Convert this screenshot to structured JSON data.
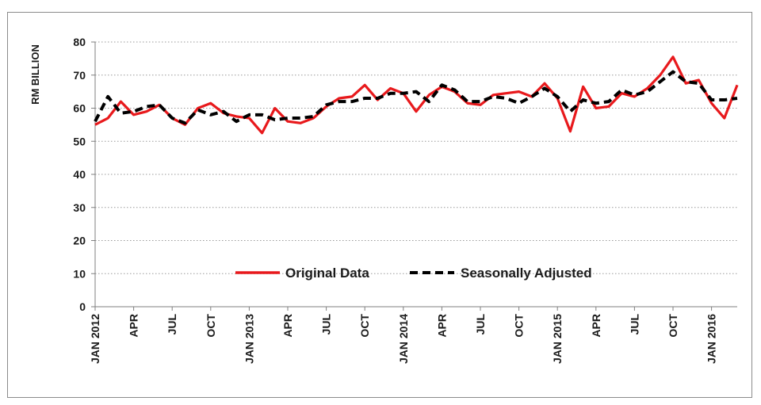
{
  "chart_data": {
    "type": "line",
    "title": "",
    "xlabel": "",
    "ylabel": "RM BILLION",
    "ylim": [
      0,
      80
    ],
    "y_ticks": [
      0,
      10,
      20,
      30,
      40,
      50,
      60,
      70,
      80
    ],
    "grid": "horizontal dotted",
    "legend_position": "bottom-center, inside plot",
    "x_tick_labels": [
      {
        "index": 0,
        "label": "JAN 2012"
      },
      {
        "index": 3,
        "label": "APR"
      },
      {
        "index": 6,
        "label": "JUL"
      },
      {
        "index": 9,
        "label": "OCT"
      },
      {
        "index": 12,
        "label": "JAN 2013"
      },
      {
        "index": 15,
        "label": "APR"
      },
      {
        "index": 18,
        "label": "JUL"
      },
      {
        "index": 21,
        "label": "OCT"
      },
      {
        "index": 24,
        "label": "JAN 2014"
      },
      {
        "index": 27,
        "label": "APR"
      },
      {
        "index": 30,
        "label": "JUL"
      },
      {
        "index": 33,
        "label": "OCT"
      },
      {
        "index": 36,
        "label": "JAN 2015"
      },
      {
        "index": 39,
        "label": "APR"
      },
      {
        "index": 42,
        "label": "JUL"
      },
      {
        "index": 45,
        "label": "OCT"
      },
      {
        "index": 48,
        "label": "JAN 2016"
      }
    ],
    "series": [
      {
        "name": "Original Data",
        "color": "#e8191c",
        "style": "solid",
        "values": [
          55,
          57,
          62,
          58,
          59,
          61,
          57,
          55,
          60,
          61.5,
          58.5,
          57.5,
          57,
          52.5,
          60,
          56,
          55.5,
          57,
          60.5,
          63,
          63.5,
          67,
          62.5,
          66,
          64.5,
          59,
          64,
          66.5,
          65,
          61.5,
          61,
          64,
          64.5,
          65,
          63.5,
          67.5,
          63,
          53,
          66.5,
          60,
          60.5,
          64.5,
          63.5,
          66,
          70,
          75.5,
          67.5,
          68.5,
          61.5,
          57,
          67
        ]
      },
      {
        "name": "Seasonally Adjusted",
        "color": "#000000",
        "style": "dashed",
        "values": [
          56,
          63.5,
          58.5,
          59,
          60.5,
          61,
          57,
          55.5,
          59.5,
          58,
          59,
          56,
          58,
          58,
          56.5,
          57,
          57,
          57.5,
          61,
          62,
          62,
          63,
          63,
          64.5,
          64.5,
          65,
          62,
          67,
          65.5,
          62,
          62,
          63.5,
          63,
          61.5,
          63.5,
          66,
          63.5,
          59,
          62.5,
          61.5,
          62,
          65.5,
          64,
          65,
          68,
          71,
          68,
          67.5,
          62.5,
          62.5,
          63
        ]
      }
    ]
  }
}
